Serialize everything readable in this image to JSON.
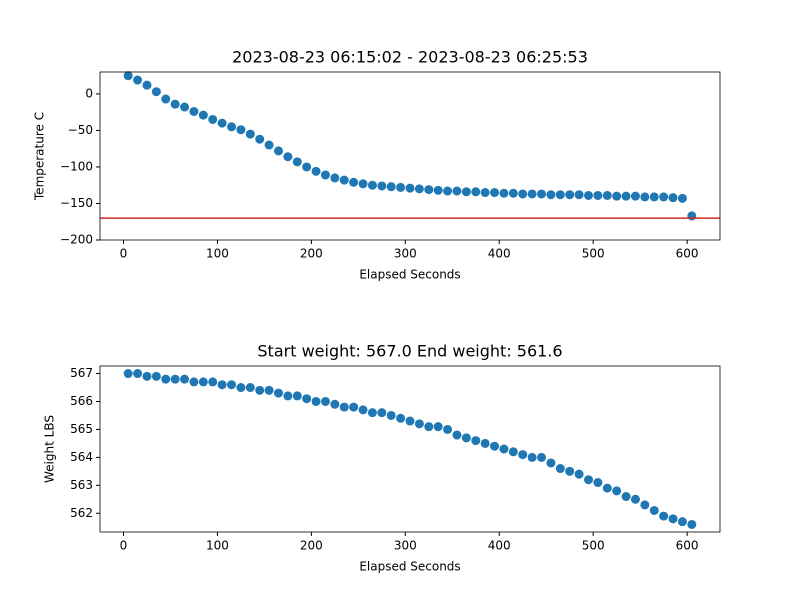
{
  "chart_data": [
    {
      "type": "scatter",
      "title": "2023-08-23 06:15:02 - 2023-08-23 06:25:53",
      "x_label": "Elapsed Seconds",
      "y_label": "Temperature C",
      "x": [
        5,
        15,
        25,
        35,
        45,
        55,
        65,
        75,
        85,
        95,
        105,
        115,
        125,
        135,
        145,
        155,
        165,
        175,
        185,
        195,
        205,
        215,
        225,
        235,
        245,
        255,
        265,
        275,
        285,
        295,
        305,
        315,
        325,
        335,
        345,
        355,
        365,
        375,
        385,
        395,
        405,
        415,
        425,
        435,
        445,
        455,
        465,
        475,
        485,
        495,
        505,
        515,
        525,
        535,
        545,
        555,
        565,
        575,
        585,
        595,
        605
      ],
      "values": [
        25,
        19,
        12,
        3,
        -7,
        -14,
        -18,
        -24,
        -29,
        -35,
        -40,
        -45,
        -49,
        -55,
        -62,
        -70,
        -78,
        -86,
        -93,
        -100,
        -106,
        -111,
        -115,
        -118,
        -121,
        -123,
        -125,
        -126,
        -127,
        -128,
        -129,
        -130,
        -131,
        -132,
        -133,
        -133,
        -134,
        -134,
        -135,
        -135,
        -136,
        -136,
        -137,
        -137,
        -137,
        -138,
        -138,
        -138,
        -138,
        -139,
        -139,
        -139,
        -140,
        -140,
        -140,
        -141,
        -141,
        -141,
        -142,
        -143,
        -167
      ],
      "color": "#1f77b4",
      "hline": {
        "value": -170,
        "color": "#d62728"
      },
      "xlim": [
        -25,
        635
      ],
      "ylim": [
        -200,
        30
      ],
      "xticks": [
        0,
        100,
        200,
        300,
        400,
        500,
        600
      ],
      "yticks": [
        {
          "value": -200,
          "label": "−200"
        },
        {
          "value": -150,
          "label": "−150"
        },
        {
          "value": -100,
          "label": "−100"
        },
        {
          "value": -50,
          "label": "−50"
        },
        0
      ]
    },
    {
      "type": "scatter",
      "title": "Start weight: 567.0 End weight: 561.6",
      "x_label": "Elapsed Seconds",
      "y_label": "Weight LBS",
      "x": [
        5,
        15,
        25,
        35,
        45,
        55,
        65,
        75,
        85,
        95,
        105,
        115,
        125,
        135,
        145,
        155,
        165,
        175,
        185,
        195,
        205,
        215,
        225,
        235,
        245,
        255,
        265,
        275,
        285,
        295,
        305,
        315,
        325,
        335,
        345,
        355,
        365,
        375,
        385,
        395,
        405,
        415,
        425,
        435,
        445,
        455,
        465,
        475,
        485,
        495,
        505,
        515,
        525,
        535,
        545,
        555,
        565,
        575,
        585,
        595,
        605
      ],
      "values": [
        567.0,
        567.0,
        566.9,
        566.9,
        566.8,
        566.8,
        566.8,
        566.7,
        566.7,
        566.7,
        566.6,
        566.6,
        566.5,
        566.5,
        566.4,
        566.4,
        566.3,
        566.2,
        566.2,
        566.1,
        566.0,
        566.0,
        565.9,
        565.8,
        565.8,
        565.7,
        565.6,
        565.6,
        565.5,
        565.4,
        565.3,
        565.2,
        565.1,
        565.1,
        565.0,
        564.8,
        564.7,
        564.6,
        564.5,
        564.4,
        564.3,
        564.2,
        564.1,
        564.0,
        564.0,
        563.8,
        563.6,
        563.5,
        563.4,
        563.2,
        563.1,
        562.9,
        562.8,
        562.6,
        562.5,
        562.3,
        562.1,
        561.9,
        561.8,
        561.7,
        561.6
      ],
      "color": "#1f77b4",
      "xlim": [
        -25,
        635
      ],
      "ylim": [
        561.33,
        567.27
      ],
      "xticks": [
        0,
        100,
        200,
        300,
        400,
        500,
        600
      ],
      "yticks": [
        562,
        563,
        564,
        565,
        566,
        567
      ]
    }
  ]
}
